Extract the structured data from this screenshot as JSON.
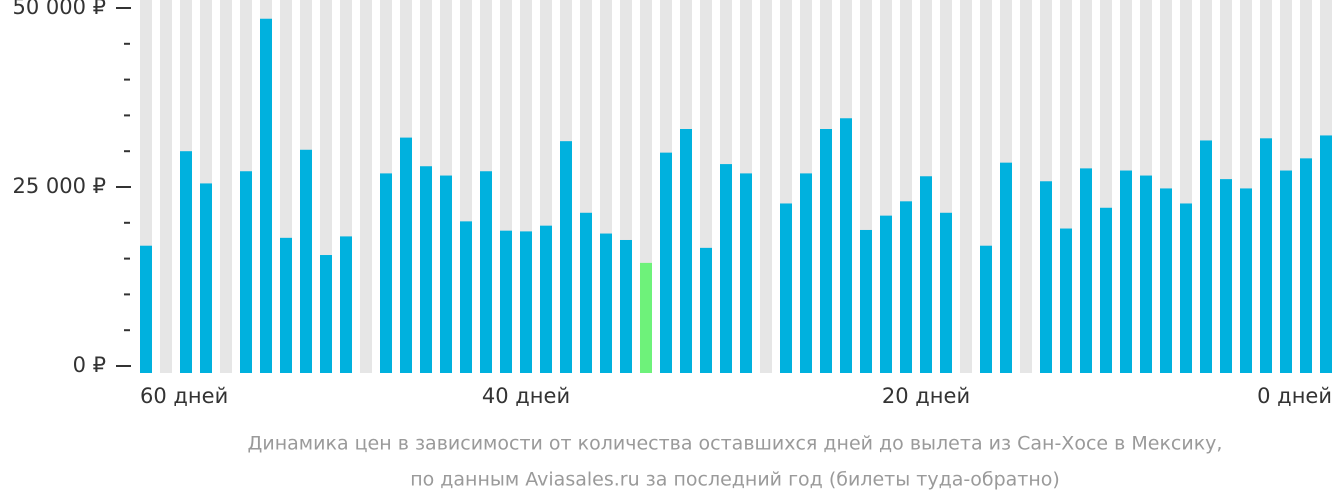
{
  "chart_data": {
    "type": "bar",
    "caption": [
      "Динамика цен в зависимости от количества оставшихся дней до вылета из Сан-Хосе в Мексику,",
      "по данным Aviasales.ru за последний год (билеты туда-обратно)"
    ],
    "categories": [
      "60 дней",
      null,
      null,
      null,
      null,
      null,
      null,
      null,
      null,
      null,
      null,
      null,
      null,
      null,
      null,
      null,
      null,
      null,
      null,
      "40 дней",
      null,
      null,
      null,
      null,
      null,
      null,
      null,
      null,
      null,
      null,
      null,
      null,
      null,
      null,
      null,
      null,
      null,
      null,
      null,
      "20 дней",
      null,
      null,
      null,
      null,
      null,
      null,
      null,
      null,
      null,
      null,
      null,
      null,
      null,
      null,
      null,
      null,
      null,
      null,
      null,
      "0 дней"
    ],
    "values": [
      16800,
      null,
      30000,
      25500,
      null,
      27200,
      48500,
      17900,
      30200,
      15500,
      18100,
      null,
      26900,
      31900,
      27900,
      26600,
      20200,
      27200,
      18900,
      18800,
      19600,
      31400,
      21400,
      18500,
      17600,
      14400,
      29800,
      33100,
      16500,
      28200,
      26900,
      null,
      22700,
      26900,
      33100,
      34600,
      19000,
      21000,
      23000,
      26500,
      21400,
      null,
      16800,
      28400,
      null,
      25800,
      19200,
      27600,
      22100,
      27300,
      26600,
      24800,
      22700,
      31500,
      26100,
      24800,
      31800,
      27300,
      29000,
      32200
    ],
    "color": "#00b1de",
    "highlight_color": "#6ef27a",
    "highlight_category": 25,
    "background_color": "#e6e6e6",
    "ylim": [
      0,
      50000
    ],
    "yticks": [
      {
        "value": 0,
        "label": "0 ₽"
      },
      {
        "value": 25000,
        "label": "25 000 ₽"
      },
      {
        "value": 50000,
        "label": "50 000 ₽"
      }
    ],
    "minor_yticks": [
      5000,
      10000,
      15000,
      20000,
      30000,
      35000,
      40000,
      45000
    ]
  }
}
